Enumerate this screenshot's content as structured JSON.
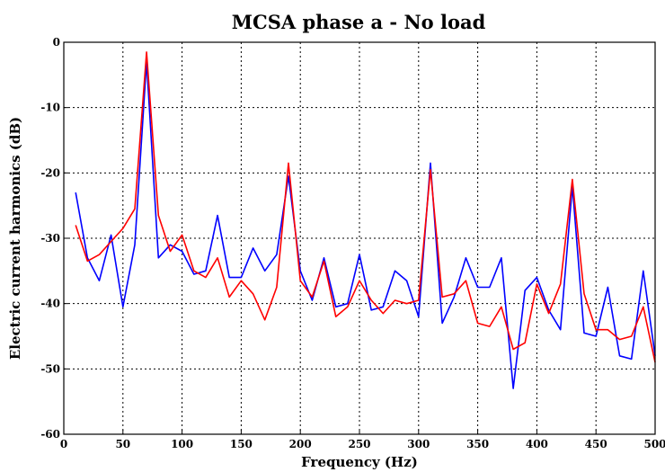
{
  "chart_data": {
    "type": "line",
    "title": "MCSA phase a - No load",
    "xlabel": "Frequency (Hz)",
    "ylabel": "Electric current harmonics (dB)",
    "xlim": [
      0,
      500
    ],
    "ylim": [
      -60,
      0
    ],
    "xticks": [
      0,
      50,
      100,
      150,
      200,
      250,
      300,
      350,
      400,
      450,
      500
    ],
    "yticks": [
      0,
      -10,
      -20,
      -30,
      -40,
      -50,
      -60
    ],
    "grid": true,
    "x": [
      10,
      20,
      30,
      40,
      50,
      60,
      70,
      80,
      90,
      100,
      110,
      120,
      130,
      140,
      150,
      160,
      170,
      180,
      190,
      200,
      210,
      220,
      230,
      240,
      250,
      260,
      270,
      280,
      290,
      300,
      310,
      320,
      330,
      340,
      350,
      360,
      370,
      380,
      390,
      400,
      410,
      420,
      430,
      440,
      450,
      460,
      470,
      480,
      490,
      500
    ],
    "series": [
      {
        "color": "#0000ff",
        "values": [
          -23,
          -33,
          -36.5,
          -29.5,
          -40.5,
          -31,
          -3,
          -33,
          -31,
          -32,
          -35.5,
          -35,
          -26.5,
          -36,
          -36,
          -31.5,
          -35,
          -32.5,
          -20.5,
          -35,
          -39.5,
          -33,
          -40.5,
          -40,
          -32.5,
          -41,
          -40.5,
          -35,
          -36.5,
          -42,
          -18.5,
          -43,
          -39,
          -33,
          -37.5,
          -37.5,
          -33,
          -53,
          -38,
          -36,
          -41,
          -44,
          -22,
          -44.5,
          -45,
          -37.5,
          -48,
          -48.5,
          -35,
          -48
        ]
      },
      {
        "color": "#ff0000",
        "values": [
          -28,
          -33.5,
          -32.5,
          -30.5,
          -28.5,
          -25.5,
          -1.5,
          -26.5,
          -32,
          -29.5,
          -35,
          -36,
          -33,
          -39,
          -36.5,
          -38.5,
          -42.5,
          -37.5,
          -18.5,
          -36.5,
          -39,
          -33.5,
          -42,
          -40.5,
          -36.5,
          -39.5,
          -41.5,
          -39.5,
          -40,
          -39.5,
          -19.5,
          -39,
          -38.5,
          -36.5,
          -43,
          -43.5,
          -40.5,
          -47,
          -46,
          -37,
          -41.5,
          -37,
          -21,
          -38.5,
          -44,
          -44,
          -45.5,
          -45,
          -40.5,
          -49
        ]
      }
    ]
  }
}
